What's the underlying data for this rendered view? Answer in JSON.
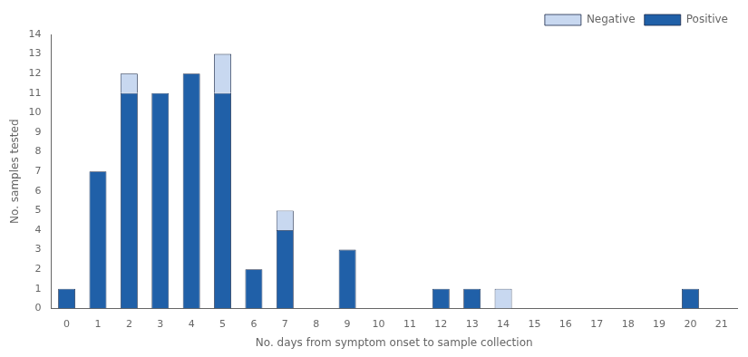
{
  "chart_data": {
    "type": "bar",
    "stacked": true,
    "x": [
      0,
      1,
      2,
      3,
      4,
      5,
      6,
      7,
      8,
      9,
      10,
      11,
      12,
      13,
      14,
      15,
      16,
      17,
      18,
      19,
      20,
      21
    ],
    "series": [
      {
        "name": "Positive",
        "color": "#2060a8",
        "values": [
          1,
          7,
          11,
          11,
          12,
          11,
          2,
          4,
          0,
          3,
          0,
          0,
          1,
          1,
          0,
          0,
          0,
          0,
          0,
          0,
          1,
          0
        ]
      },
      {
        "name": "Negative",
        "color": "#c8d8f0",
        "values": [
          0,
          0,
          1,
          0,
          0,
          2,
          0,
          1,
          0,
          0,
          0,
          0,
          0,
          0,
          1,
          0,
          0,
          0,
          0,
          0,
          0,
          0
        ]
      }
    ],
    "xlabel": "No. days from symptom onset to sample collection",
    "ylabel": "No. samples tested",
    "xlim": [
      -0.5,
      21.5
    ],
    "xticks": [
      0,
      1,
      2,
      3,
      4,
      5,
      6,
      7,
      8,
      9,
      10,
      11,
      12,
      13,
      14,
      15,
      16,
      17,
      18,
      19,
      20,
      21
    ],
    "ylim": [
      0,
      14
    ],
    "yticks": [
      0,
      1,
      2,
      3,
      4,
      5,
      6,
      7,
      8,
      9,
      10,
      11,
      12,
      13,
      14
    ],
    "legend": "upper right",
    "grid": false
  }
}
